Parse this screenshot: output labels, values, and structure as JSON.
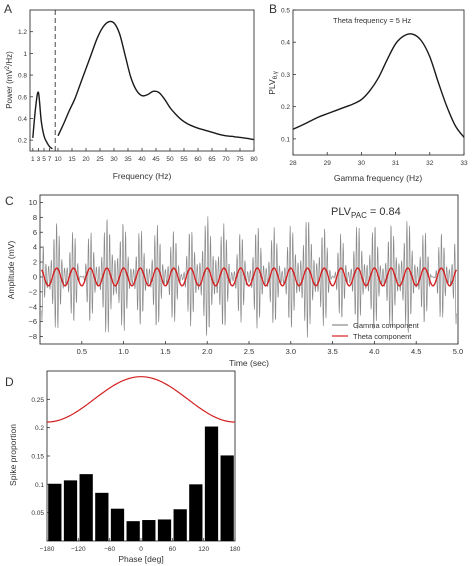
{
  "figure": {
    "panels": [
      {
        "id": "A",
        "label": "A"
      },
      {
        "id": "B",
        "label": "B"
      },
      {
        "id": "C",
        "label": "C"
      },
      {
        "id": "D",
        "label": "D"
      }
    ]
  },
  "chart_data": [
    {
      "panel": "A",
      "type": "line",
      "xlabel": "Frequency (Hz)",
      "ylabel_parts": {
        "pre": "Power (mV",
        "sup": "2",
        "post": "/Hz)"
      },
      "xlim": [
        0,
        80
      ],
      "ylim": [
        0.1,
        1.4
      ],
      "xticks": [
        1,
        3,
        5,
        7,
        10,
        15,
        20,
        25,
        30,
        35,
        40,
        45,
        50,
        55,
        60,
        65,
        70,
        75,
        80
      ],
      "xtick_labels": [
        "1",
        "3",
        "5",
        "7",
        "10",
        "15",
        "20",
        "25",
        "30",
        "35",
        "40",
        "45",
        "50",
        "55",
        "60",
        "65",
        "70",
        "75",
        "80"
      ],
      "yticks": [
        0.2,
        0.4,
        0.6,
        0.8,
        1.0,
        1.2
      ],
      "ytick_labels": [
        "0.2",
        "0.4",
        "0.6",
        "0.8",
        "1",
        "1.2"
      ],
      "divider_x": 9,
      "series": [
        {
          "x": [
            1,
            2,
            3,
            4,
            5,
            6,
            7,
            8
          ],
          "y": [
            0.22,
            0.5,
            0.64,
            0.38,
            0.24,
            0.18,
            0.14,
            0.12
          ]
        },
        {
          "x": [
            10,
            12,
            14,
            16,
            18,
            20,
            22,
            24,
            26,
            28,
            30,
            32,
            34,
            36,
            38,
            40,
            42,
            44,
            46,
            48,
            50,
            52,
            54,
            56,
            58,
            60,
            62,
            64,
            66,
            68,
            70,
            72,
            74,
            76,
            78,
            80
          ],
          "y": [
            0.24,
            0.35,
            0.47,
            0.58,
            0.72,
            0.86,
            1.0,
            1.14,
            1.24,
            1.29,
            1.28,
            1.18,
            0.98,
            0.78,
            0.66,
            0.61,
            0.62,
            0.65,
            0.64,
            0.58,
            0.5,
            0.44,
            0.39,
            0.355,
            0.33,
            0.31,
            0.295,
            0.28,
            0.265,
            0.25,
            0.24,
            0.235,
            0.228,
            0.222,
            0.215,
            0.205
          ]
        }
      ]
    },
    {
      "panel": "B",
      "type": "line",
      "xlabel": "Gamma frequency (Hz)",
      "ylabel_parts": {
        "pre": "PLV",
        "sub": "θ,γ"
      },
      "annotation": "Theta frequency = 5 Hz",
      "xlim": [
        28,
        33
      ],
      "ylim": [
        0.05,
        0.5
      ],
      "xticks": [
        28,
        29,
        30,
        31,
        32,
        33
      ],
      "xtick_labels": [
        "28",
        "29",
        "30",
        "31",
        "32",
        "33"
      ],
      "yticks": [
        0.1,
        0.2,
        0.3,
        0.4,
        0.5
      ],
      "ytick_labels": [
        "0.1",
        "0.2",
        "0.3",
        "0.4",
        "0.5"
      ],
      "series": [
        {
          "x": [
            28.0,
            28.25,
            28.5,
            28.75,
            29.0,
            29.25,
            29.5,
            29.75,
            30.0,
            30.25,
            30.5,
            30.75,
            31.0,
            31.25,
            31.5,
            31.75,
            32.0,
            32.25,
            32.5,
            32.75,
            33.0
          ],
          "y": [
            0.13,
            0.142,
            0.155,
            0.168,
            0.178,
            0.188,
            0.198,
            0.208,
            0.222,
            0.25,
            0.29,
            0.345,
            0.395,
            0.42,
            0.425,
            0.405,
            0.355,
            0.275,
            0.2,
            0.14,
            0.105
          ]
        }
      ]
    },
    {
      "panel": "C",
      "type": "line",
      "xlabel": "Time (sec)",
      "ylabel": "Amplitude (mV)",
      "annotation_parts": {
        "pre": "PLV",
        "sub": "PAC",
        "post": " = 0.84"
      },
      "xlim": [
        0,
        5
      ],
      "ylim": [
        -9,
        11
      ],
      "xticks": [
        0.5,
        1,
        1.5,
        2,
        2.5,
        3,
        3.5,
        4,
        4.5,
        5
      ],
      "xtick_labels": [
        "0.5",
        "1.0",
        "1.5",
        "2.0",
        "2.5",
        "3.0",
        "3.5",
        "4.0",
        "4.5",
        "5.0"
      ],
      "yticks": [
        -8,
        -6,
        -4,
        -2,
        0,
        2,
        4,
        6,
        8,
        10
      ],
      "ytick_labels": [
        "−8",
        "−6",
        "−4",
        "−2",
        "0",
        "2",
        "4",
        "6",
        "8",
        "10"
      ],
      "legend": {
        "placement": "bottom-right",
        "entries": [
          "Gamma component",
          "Theta component"
        ]
      },
      "series": [
        {
          "name": "Gamma component",
          "color": "#8a8a8a",
          "signal": "gamma oscillation ~31.5 Hz, envelope peaking at theta peaks, max ~8.5 mV"
        },
        {
          "name": "Theta component",
          "color": "#d42020",
          "signal": "theta oscillation 5 Hz, amplitude ~1.2 mV"
        }
      ]
    },
    {
      "panel": "D",
      "type": "bar",
      "xlabel": "Phase [deg]",
      "ylabel": "Spike proportion",
      "xlim": [
        -180,
        180
      ],
      "ylim": [
        0,
        0.3
      ],
      "xticks": [
        -180,
        -120,
        -60,
        0,
        60,
        120,
        180
      ],
      "xtick_labels": [
        "−180",
        "−120",
        "−60",
        "0",
        "60",
        "120",
        "180"
      ],
      "yticks": [
        0.05,
        0.1,
        0.15,
        0.2,
        0.25
      ],
      "ytick_labels": [
        "0.05",
        "0.1",
        "0.15",
        "0.2",
        "0.25"
      ],
      "bins": [
        -165,
        -135,
        -105,
        -75,
        -45,
        -15,
        15,
        45,
        75,
        105,
        135,
        165
      ],
      "values": [
        0.101,
        0.107,
        0.118,
        0.085,
        0.057,
        0.035,
        0.037,
        0.038,
        0.056,
        0.1,
        0.202,
        0.151
      ],
      "bar_color": "#000000",
      "curve": {
        "color": "#d42020",
        "min": 0.21,
        "max": 0.29,
        "shape": "cosine"
      }
    }
  ]
}
